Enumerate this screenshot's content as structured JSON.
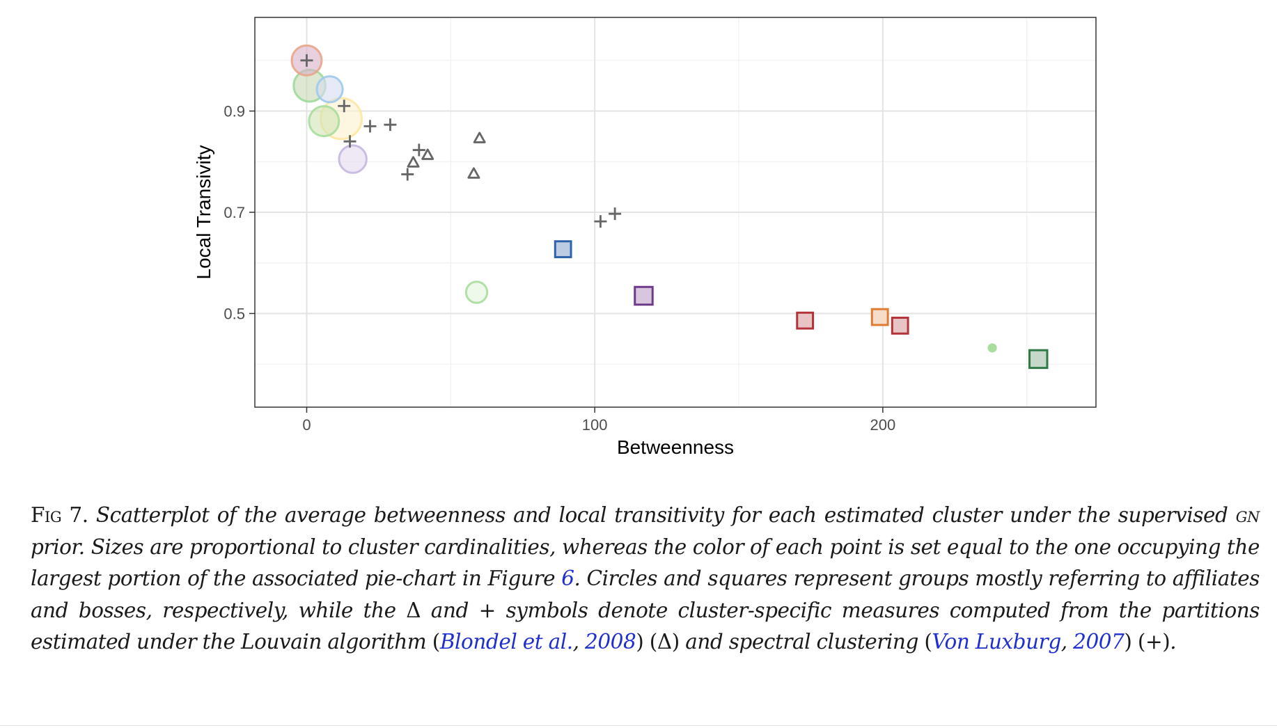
{
  "chart_data": {
    "type": "scatter",
    "xlabel": "Betweenness",
    "ylabel": "Local Transivity",
    "xlim": [
      -18,
      274
    ],
    "ylim": [
      0.315,
      1.085
    ],
    "x_ticks": [
      0,
      100,
      200
    ],
    "y_ticks": [
      0.5,
      0.7,
      0.9
    ],
    "grid": true,
    "series": [
      {
        "marker": "circle",
        "points": [
          {
            "x": 0,
            "y": 1.0,
            "size": 3.2,
            "color": "#e8a58a",
            "fill": "#d9b1c9"
          },
          {
            "x": 1,
            "y": 0.95,
            "size": 3.6,
            "color": "#9fd99b",
            "fill": "#c6d7b4"
          },
          {
            "x": 8,
            "y": 0.943,
            "size": 2.4,
            "color": "#9ec9ec",
            "fill": "#d5dcf0"
          },
          {
            "x": 12,
            "y": 0.885,
            "size": 6.0,
            "color": "#fde7a1",
            "fill": "#fcf2cf"
          },
          {
            "x": 6,
            "y": 0.88,
            "size": 3.2,
            "color": "#a8dd9d",
            "fill": "#d2e3b4"
          },
          {
            "x": 16,
            "y": 0.805,
            "size": 2.7,
            "color": "#c5b7e0",
            "fill": "#e2dbee"
          },
          {
            "x": 59,
            "y": 0.542,
            "size": 1.6,
            "color": "#a8dd9d",
            "fill": "#e3f3dd"
          },
          {
            "x": 238,
            "y": 0.432,
            "size": 0.3,
            "color": "#a8dd9d",
            "fill": "#a8dd9d"
          }
        ]
      },
      {
        "marker": "square",
        "points": [
          {
            "x": 89,
            "y": 0.627,
            "size": 1.6,
            "color": "#2e63a8",
            "fill": "#bccde3"
          },
          {
            "x": 117,
            "y": 0.535,
            "size": 2.0,
            "color": "#6e3a8a",
            "fill": "#d8c6df"
          },
          {
            "x": 173,
            "y": 0.486,
            "size": 1.6,
            "color": "#b3333a",
            "fill": "#e8c4c5"
          },
          {
            "x": 199,
            "y": 0.493,
            "size": 1.6,
            "color": "#e07b33",
            "fill": "#f6ddc9"
          },
          {
            "x": 206,
            "y": 0.476,
            "size": 1.6,
            "color": "#b3333a",
            "fill": "#e8c4c5"
          },
          {
            "x": 254,
            "y": 0.41,
            "size": 2.0,
            "color": "#2f7a46",
            "fill": "#c6d8c9"
          }
        ]
      },
      {
        "marker": "triangle",
        "color": "#666666",
        "points": [
          {
            "x": 60,
            "y": 0.846
          },
          {
            "x": 58,
            "y": 0.776
          },
          {
            "x": 42,
            "y": 0.813
          },
          {
            "x": 37,
            "y": 0.798
          }
        ]
      },
      {
        "marker": "plus",
        "color": "#666666",
        "points": [
          {
            "x": 0,
            "y": 1.0
          },
          {
            "x": 13,
            "y": 0.91
          },
          {
            "x": 22,
            "y": 0.87
          },
          {
            "x": 29,
            "y": 0.873
          },
          {
            "x": 15,
            "y": 0.84
          },
          {
            "x": 39,
            "y": 0.823
          },
          {
            "x": 35,
            "y": 0.775
          },
          {
            "x": 102,
            "y": 0.682
          },
          {
            "x": 107,
            "y": 0.697
          }
        ]
      }
    ]
  },
  "caption": {
    "fig_label": "Fig 7.",
    "text_1": " Scatterplot of the average betweenness and local transitivity for each estimated cluster under the supervised ",
    "gn": "gn",
    "text_2": " prior. Sizes are proportional to cluster cardinalities, whereas the color of each point is set equal to the one occupying the largest portion of the associated pie-chart in Figure ",
    "fig_ref": "6",
    "text_3": ". Circles and squares represent groups mostly referring to affiliates and bosses, respectively, while the ",
    "delta_symbol": "Δ",
    "text_4": " and ",
    "plus_symbol": "+",
    "text_5": " symbols denote cluster-specific measures computed from the partitions estimated under the Louvain algorithm ",
    "paren_open_1": "(",
    "cite_1_authors": "Blondel et al.",
    "cite_comma_1": ", ",
    "cite_1_year": "2008",
    "paren_close_1": ")",
    "delta_paren": " (Δ)",
    "text_6": " and spectral clustering ",
    "paren_open_2": "(",
    "cite_2_authors": "Von Luxburg",
    "cite_comma_2": ", ",
    "cite_2_year": "2007",
    "paren_close_2": ")",
    "plus_paren": " (+)",
    "end": "."
  }
}
